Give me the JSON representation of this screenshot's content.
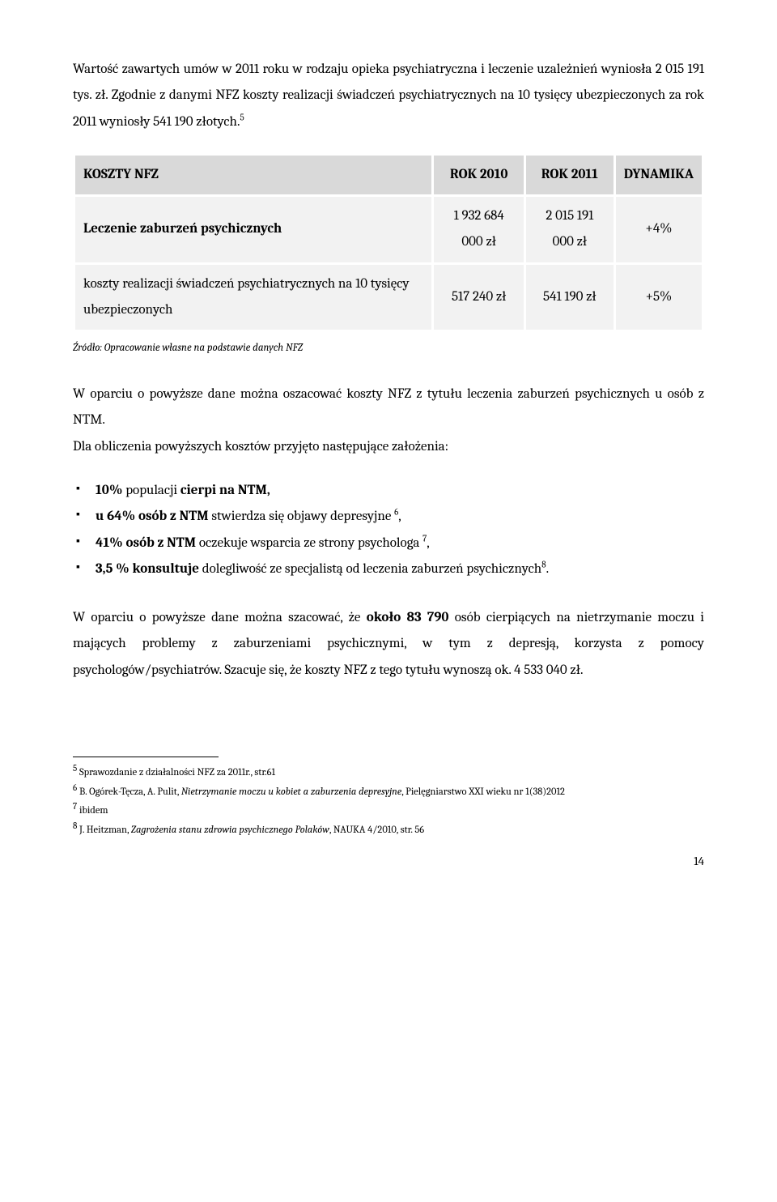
{
  "para1": "Wartość zawartych umów w 2011 roku w rodzaju opieka psychiatryczna i leczenie uzależnień wyniosła 2 015 191 tys. zł. Zgodnie z danymi NFZ koszty realizacji świadczeń psychiatrycznych na 10 tysięcy ubezpieczonych za rok 2011 wyniosły 541 190 złotych.",
  "sup1": "5",
  "table": {
    "headers": [
      "KOSZTY NFZ",
      "ROK 2010",
      "ROK 2011",
      "DYNAMIKA"
    ],
    "rows": [
      {
        "label": "Leczenie zaburzeń psychicznych",
        "c1": "1 932 684 000 zł",
        "c2": "2 015 191 000 zł",
        "c3": "+4%"
      },
      {
        "label": "koszty realizacji świadczeń psychiatrycznych na 10 tysięcy ubezpieczonych",
        "c1": "517 240 zł",
        "c2": "541 190 zł",
        "c3": "+5%"
      }
    ],
    "header_bg": "#d9d9d9",
    "cell_bg": "#f2f2f2",
    "border_color": "#ffffff"
  },
  "source": "Źródło: Opracowanie własne na podstawie danych NFZ",
  "para2": "W oparciu o powyższe dane można oszacować koszty NFZ z tytułu leczenia zaburzeń psychicznych u osób z NTM.",
  "para3": "Dla obliczenia powyższych kosztów przyjęto następujące założenia:",
  "bullets": {
    "b1a": "10%",
    "b1b": " populacji ",
    "b1c": "cierpi na NTM,",
    "b2a": "u 64% osób z NTM",
    "b2b": " stwierdza się objawy depresyjne ",
    "b2sup": "6",
    "b2c": ",",
    "b3a": "41% osób z NTM",
    "b3b": " oczekuje wsparcia ze strony psychologa ",
    "b3sup": "7",
    "b3c": ",",
    "b4a": "3,5 % konsultuje",
    "b4b": " dolegliwość ze specjalistą od leczenia zaburzeń psychicznych",
    "b4sup": "8",
    "b4c": "."
  },
  "para4a": "W oparciu o powyższe dane można szacować, że ",
  "para4b": "około 83 790",
  "para4c": " osób cierpiących na nietrzymanie moczu i mających problemy z zaburzeniami psychicznymi, w tym z depresją, korzysta z pomocy psychologów/psychiatrów. Szacuje się, że koszty NFZ z tego tytułu wynoszą ok. 4 533 040 zł.",
  "footnotes": {
    "f5": "Sprawozdanie z działalności NFZ za 2011r., str.61",
    "f6a": "B. Ogórek-Tęcza, A. Pulit, ",
    "f6i": "Nietrzymanie moczu u kobiet a zaburzenia depresyjne",
    "f6b": ", Pielęgniarstwo XXI wieku nr 1(38)2012",
    "f7": "ibidem",
    "f8a": "J. Heitzman, ",
    "f8i": "Zagrożenia stanu zdrowia psychicznego Polaków",
    "f8b": ", NAUKA 4/2010, str. 56"
  },
  "pagenum": "14"
}
